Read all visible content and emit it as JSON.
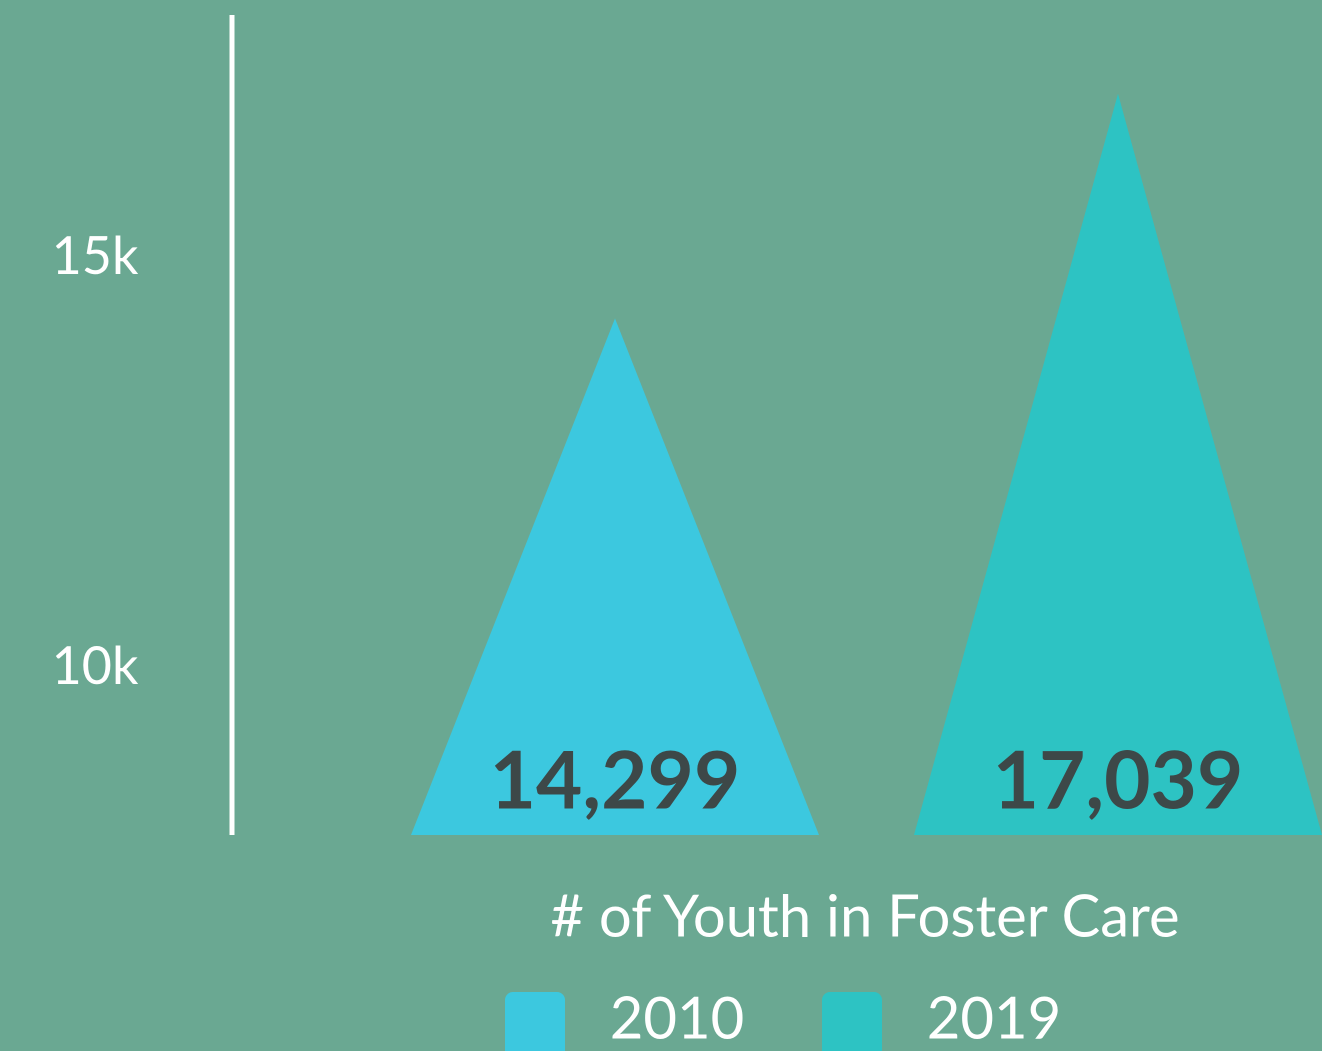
{
  "chart_data": {
    "type": "triangle-bar",
    "x_label": "# of Youth in Foster Care",
    "series": [
      {
        "name": "2010",
        "color": "#3cc8df",
        "values": [
          14299
        ],
        "value_labels": [
          "14,299"
        ]
      },
      {
        "name": "2019",
        "color": "#2dc3c3",
        "values": [
          17039
        ],
        "value_labels": [
          "17,039"
        ]
      }
    ],
    "ylim": [
      8000,
      18000
    ],
    "yticks": [
      {
        "value": 10000,
        "label": "10k"
      },
      {
        "value": 15000,
        "label": "15k"
      }
    ],
    "grid": false,
    "legend": "bottom"
  }
}
